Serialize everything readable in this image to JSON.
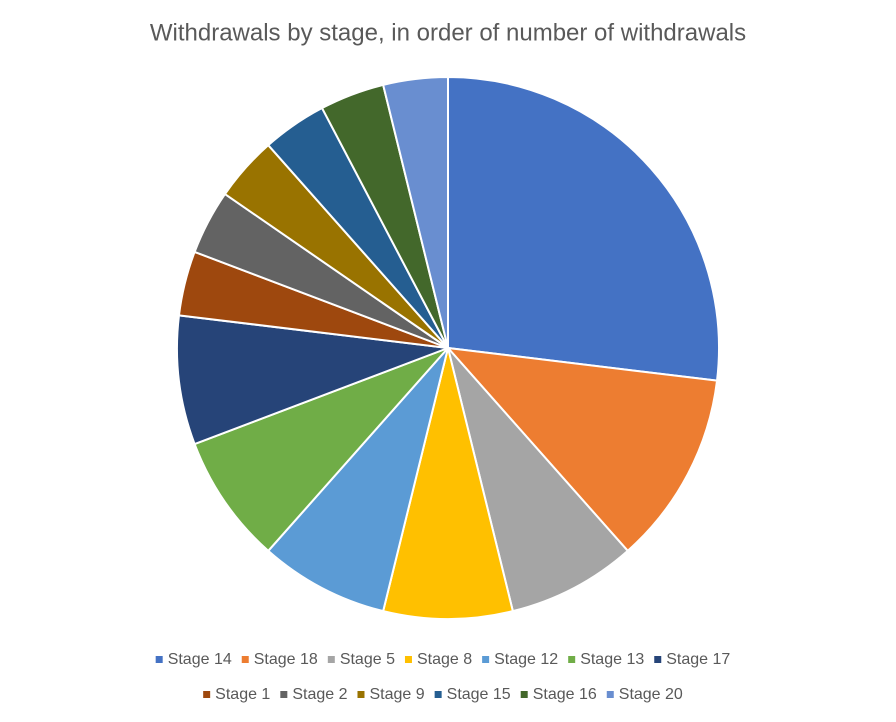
{
  "chart_data": {
    "type": "pie",
    "title": "Withdrawals by stage, in order of number of withdrawals",
    "categories": [
      "Stage 14",
      "Stage 18",
      "Stage 5",
      "Stage 8",
      "Stage 12",
      "Stage 13",
      "Stage 17",
      "Stage 1",
      "Stage 2",
      "Stage 9",
      "Stage 15",
      "Stage 16",
      "Stage 20"
    ],
    "values": [
      7,
      3,
      2,
      2,
      2,
      2,
      2,
      1,
      1,
      1,
      1,
      1,
      1
    ],
    "colors": [
      "#4472c4",
      "#ed7d31",
      "#a5a5a5",
      "#ffc000",
      "#5b9bd5",
      "#70ad47",
      "#264478",
      "#9e480e",
      "#636363",
      "#997300",
      "#255e91",
      "#43682b",
      "#698ed0"
    ],
    "legend": "bottom"
  }
}
